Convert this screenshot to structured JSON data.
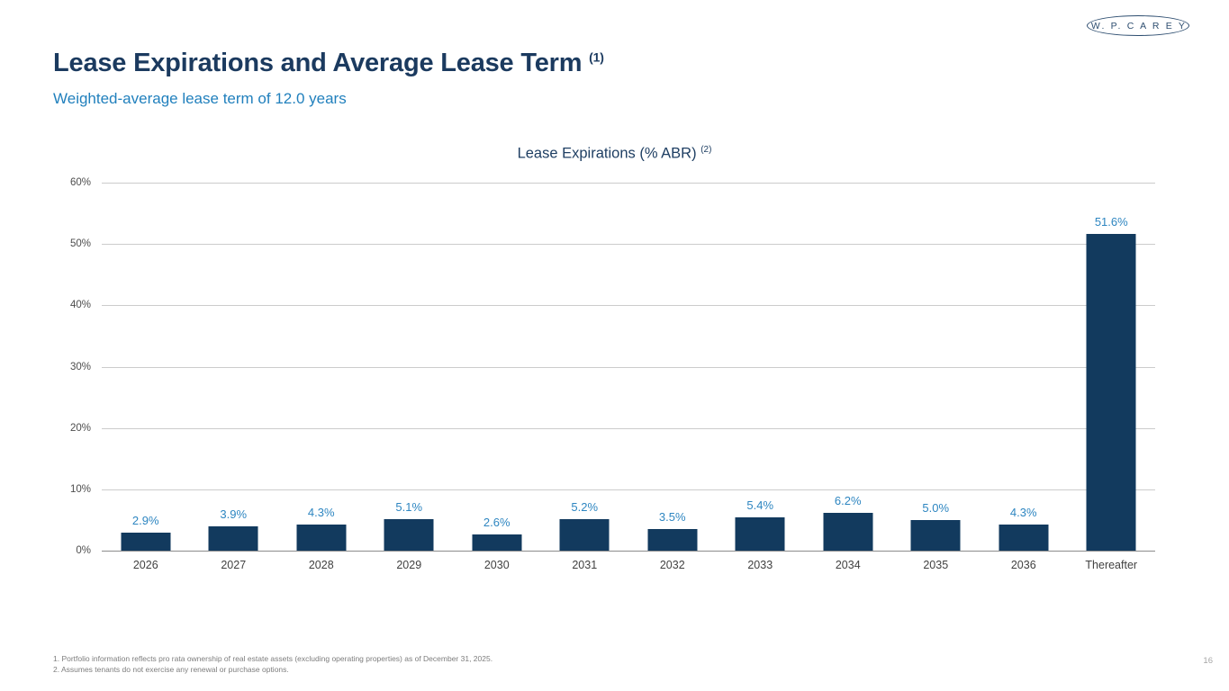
{
  "page": {
    "logo_text": "W. P. C A R E Y",
    "title": "Lease Expirations and Average Lease Term",
    "title_superscript": "(1)",
    "subtitle": "Weighted-average lease term of 12.0 years",
    "footnotes": [
      "1.  Portfolio information reflects pro rata ownership of real estate assets (excluding operating properties) as of December 31, 2025.",
      "2. Assumes tenants do not exercise any renewal or purchase options."
    ],
    "page_number": "16"
  },
  "chart_data": {
    "type": "bar",
    "title": "Lease Expirations (% ABR)",
    "title_superscript": "(2)",
    "categories": [
      "2026",
      "2027",
      "2028",
      "2029",
      "2030",
      "2031",
      "2032",
      "2033",
      "2034",
      "2035",
      "2036",
      "Thereafter"
    ],
    "values": [
      2.9,
      3.9,
      4.3,
      5.1,
      2.6,
      5.2,
      3.5,
      5.4,
      6.2,
      5.0,
      4.3,
      51.6
    ],
    "value_labels": [
      "2.9%",
      "3.9%",
      "4.3%",
      "5.1%",
      "2.6%",
      "5.2%",
      "3.5%",
      "5.4%",
      "6.2%",
      "5.0%",
      "4.3%",
      "51.6%"
    ],
    "xlabel": "",
    "ylabel": "",
    "ylim": [
      0,
      60
    ],
    "ytick_labels": [
      "0%",
      "10%",
      "20%",
      "30%",
      "40%",
      "50%",
      "60%"
    ],
    "grid": true,
    "legend": "none",
    "bar_color": "#123a5e",
    "value_label_color": "#2e86c1"
  }
}
